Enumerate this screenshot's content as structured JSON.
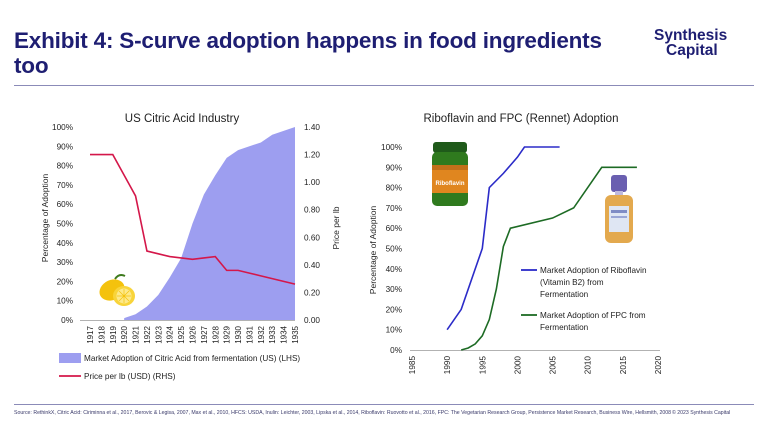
{
  "header": {
    "title": "Exhibit 4: S-curve adoption happens in food ingredients too",
    "logo_line1": "Synthesis",
    "logo_line2": "Capital"
  },
  "footer": {
    "source": "Source: RethinkX, Citric Acid: Ciriminna et al., 2017, Berovic & Legisa, 2007, Max et al., 2010, HFCS: USDA, Inulin: Leichter, 2003, Lipska et al., 2014, Riboflavin: Ruovotto et al., 2016, FPC: The Vegetarian Research Group, Persistence Market Research, Business Wire, Hellsmith, 2008",
    "copyright": "© 2023 Synthesis Capital"
  },
  "colors": {
    "navy": "#1e1e72",
    "area": "#9d9ef0",
    "price": "#d4174a",
    "riboflavin": "#2b2bc8",
    "fpc": "#1d6b24"
  },
  "chart_data": [
    {
      "type": "area",
      "title": "US Citric Acid Industry",
      "categories": [
        "1917",
        "1918",
        "1919",
        "1920",
        "1921",
        "1922",
        "1923",
        "1924",
        "1925",
        "1926",
        "1927",
        "1928",
        "1929",
        "1930",
        "1931",
        "1932",
        "1933",
        "1934",
        "1935"
      ],
      "ylabel": "Percentage of Adoption",
      "ylabel_right": "Price per lb",
      "ylim": [
        0,
        100
      ],
      "ylim_right": [
        0,
        1.4
      ],
      "yticks": [
        "0%",
        "10%",
        "20%",
        "30%",
        "40%",
        "50%",
        "60%",
        "70%",
        "80%",
        "90%",
        "100%"
      ],
      "yticks_right": [
        "0.00",
        "0.20",
        "0.40",
        "0.60",
        "0.80",
        "1.00",
        "1.20",
        "1.40"
      ],
      "series": [
        {
          "name": "Market Adoption of Citric Acid from fermentation (US) (LHS)",
          "kind": "area",
          "axis": "left",
          "values": [
            null,
            null,
            null,
            1,
            3,
            7,
            13,
            22,
            32,
            50,
            65,
            75,
            84,
            88,
            90,
            92,
            96,
            98,
            100
          ]
        },
        {
          "name": "Price per lb (USD) (RHS)",
          "kind": "line",
          "axis": "right",
          "values": [
            1.2,
            1.2,
            1.2,
            1.05,
            0.9,
            0.5,
            0.48,
            0.46,
            0.45,
            0.44,
            0.45,
            0.46,
            0.36,
            0.36,
            0.34,
            0.32,
            0.3,
            0.28,
            0.26
          ]
        }
      ]
    },
    {
      "type": "line",
      "title": "Riboflavin and FPC (Rennet) Adoption",
      "ylabel": "Percentage of Adoption",
      "xlim": [
        1985,
        2020
      ],
      "ylim": [
        0,
        100
      ],
      "xticks": [
        "1985",
        "1990",
        "1995",
        "2000",
        "2005",
        "2010",
        "2015",
        "2020"
      ],
      "yticks": [
        "0%",
        "10%",
        "20%",
        "30%",
        "40%",
        "50%",
        "60%",
        "70%",
        "80%",
        "90%",
        "100%"
      ],
      "series": [
        {
          "name": "Market Adoption of Riboflavin (Vitamin B2) from Fermentation",
          "x": [
            1990,
            1992,
            1994,
            1995,
            1996,
            1998,
            2000,
            2001,
            2006
          ],
          "y": [
            10,
            20,
            40,
            50,
            80,
            87,
            95,
            100,
            100
          ]
        },
        {
          "name": "Market Adoption of FPC from Fermentation",
          "x": [
            1992,
            1993,
            1994,
            1995,
            1996,
            1997,
            1998,
            1999,
            2005,
            2008,
            2011,
            2012,
            2017
          ],
          "y": [
            0,
            1,
            3,
            7,
            15,
            30,
            51,
            60,
            65,
            70,
            85,
            90,
            90
          ]
        }
      ]
    }
  ]
}
